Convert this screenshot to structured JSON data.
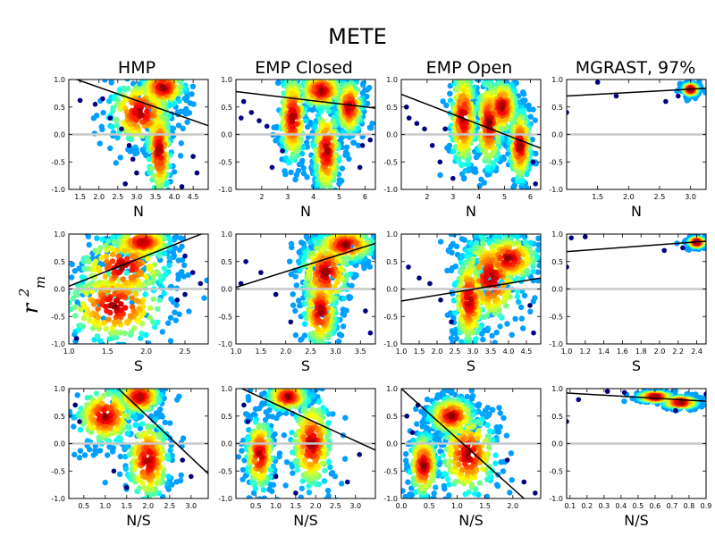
{
  "figure": {
    "title": "METE",
    "ylabel_main": "r",
    "ylabel_sup": "2",
    "ylabel_sub": "m",
    "column_titles": [
      "HMP",
      "EMP Closed",
      "EMP Open",
      "MGRAST, 97%"
    ],
    "row_xlabels": [
      "N",
      "S",
      "N/S"
    ]
  },
  "chart_data": [
    {
      "type": "scatter",
      "title": "HMP",
      "xlabel": "N",
      "ylim": [
        -1,
        1
      ],
      "xlim": [
        1.2,
        4.9
      ],
      "xticks": [
        "1.5",
        "2.0",
        "2.5",
        "3.0",
        "3.5",
        "4.0",
        "4.5"
      ],
      "yticks": [
        "1.0",
        "0.5",
        "0.0",
        "-0.5",
        "-1.0"
      ],
      "fit_line": {
        "x": [
          1.2,
          4.9
        ],
        "y": [
          1.05,
          0.16
        ]
      },
      "reference_line_y": 0,
      "density_clusters": [
        {
          "x": 3.7,
          "y": 0.85,
          "sx": 0.35,
          "sy": 0.2
        },
        {
          "x": 3.6,
          "y": -0.3,
          "sx": 0.18,
          "sy": 0.5
        },
        {
          "x": 3.1,
          "y": 0.4,
          "sx": 0.5,
          "sy": 0.35
        }
      ],
      "outliers": [
        [
          1.5,
          0.62
        ],
        [
          1.9,
          0.55
        ],
        [
          2.3,
          0.3
        ],
        [
          2.6,
          0.1
        ],
        [
          2.8,
          -0.2
        ],
        [
          2.9,
          -0.45
        ],
        [
          3.0,
          -0.7
        ],
        [
          2.7,
          -0.9
        ],
        [
          4.5,
          -0.4
        ],
        [
          4.6,
          -0.7
        ],
        [
          4.2,
          -0.95
        ],
        [
          2.1,
          0.65
        ]
      ]
    },
    {
      "type": "scatter",
      "title": "EMP Closed",
      "xlabel": "N",
      "ylim": [
        -1,
        1
      ],
      "xlim": [
        1.0,
        6.4
      ],
      "xticks": [
        "2",
        "3",
        "4",
        "5",
        "6"
      ],
      "yticks": [
        "1.0",
        "0.5",
        "0.0",
        "-0.5",
        "-1.0"
      ],
      "fit_line": {
        "x": [
          1.0,
          6.4
        ],
        "y": [
          0.78,
          0.48
        ]
      },
      "reference_line_y": 0,
      "density_clusters": [
        {
          "x": 4.3,
          "y": 0.8,
          "sx": 0.5,
          "sy": 0.2
        },
        {
          "x": 4.5,
          "y": -0.3,
          "sx": 0.3,
          "sy": 0.5
        },
        {
          "x": 3.2,
          "y": 0.3,
          "sx": 0.3,
          "sy": 0.5
        },
        {
          "x": 5.4,
          "y": 0.5,
          "sx": 0.3,
          "sy": 0.3
        }
      ],
      "outliers": [
        [
          1.3,
          0.6
        ],
        [
          1.6,
          0.4
        ],
        [
          1.9,
          0.25
        ],
        [
          2.2,
          0.15
        ],
        [
          2.4,
          -0.6
        ],
        [
          2.8,
          -0.3
        ],
        [
          5.9,
          -0.2
        ],
        [
          6.2,
          -0.1
        ],
        [
          5.8,
          -0.6
        ],
        [
          1.2,
          0.3
        ]
      ]
    },
    {
      "type": "scatter",
      "title": "EMP Open",
      "xlabel": "N",
      "ylim": [
        -1,
        1
      ],
      "xlim": [
        1.0,
        6.4
      ],
      "xticks": [
        "2",
        "3",
        "4",
        "5",
        "6"
      ],
      "yticks": [
        "1.0",
        "0.5",
        "0.0",
        "-0.5",
        "-1.0"
      ],
      "fit_line": {
        "x": [
          1.0,
          6.4
        ],
        "y": [
          0.73,
          -0.25
        ]
      },
      "reference_line_y": 0,
      "density_clusters": [
        {
          "x": 4.9,
          "y": 0.5,
          "sx": 0.35,
          "sy": 0.3
        },
        {
          "x": 4.4,
          "y": 0.2,
          "sx": 0.3,
          "sy": 0.5
        },
        {
          "x": 3.4,
          "y": 0.3,
          "sx": 0.3,
          "sy": 0.55
        },
        {
          "x": 5.6,
          "y": -0.2,
          "sx": 0.25,
          "sy": 0.4
        }
      ],
      "outliers": [
        [
          1.3,
          0.3
        ],
        [
          1.6,
          0.2
        ],
        [
          1.9,
          0.1
        ],
        [
          2.2,
          -0.2
        ],
        [
          2.5,
          -0.5
        ],
        [
          2.7,
          0.1
        ],
        [
          3.0,
          -0.8
        ],
        [
          6.1,
          -0.5
        ],
        [
          6.2,
          -0.9
        ],
        [
          1.2,
          0.5
        ]
      ]
    },
    {
      "type": "scatter",
      "title": "MGRAST, 97%",
      "xlabel": "N",
      "ylim": [
        -1,
        1
      ],
      "xlim": [
        1.0,
        3.25
      ],
      "xticks": [
        "1.5",
        "2.0",
        "2.5",
        "3.0"
      ],
      "yticks": [
        "1.0",
        "0.5",
        "0.0",
        "-0.5",
        "-1.0"
      ],
      "fit_line": {
        "x": [
          1.0,
          3.25
        ],
        "y": [
          0.7,
          0.84
        ]
      },
      "reference_line_y": 0,
      "density_clusters": [
        {
          "x": 3.0,
          "y": 0.82,
          "sx": 0.07,
          "sy": 0.06
        }
      ],
      "outliers": [
        [
          1.0,
          0.4
        ],
        [
          1.5,
          0.95
        ],
        [
          1.8,
          0.7
        ],
        [
          2.6,
          0.6
        ],
        [
          2.8,
          0.7
        ]
      ]
    },
    {
      "type": "scatter",
      "title": "",
      "xlabel": "S",
      "ylim": [
        -1,
        1
      ],
      "xlim": [
        1.0,
        2.8
      ],
      "xticks": [
        "1.0",
        "1.5",
        "2.0",
        "2.5"
      ],
      "yticks": [
        "1.0",
        "0.5",
        "0.0",
        "-0.5",
        "-1.0"
      ],
      "fit_line": {
        "x": [
          1.0,
          2.8
        ],
        "y": [
          0.05,
          1.05
        ]
      },
      "reference_line_y": 0,
      "density_clusters": [
        {
          "x": 1.95,
          "y": 0.85,
          "sx": 0.22,
          "sy": 0.15
        },
        {
          "x": 1.7,
          "y": 0.4,
          "sx": 0.35,
          "sy": 0.35
        },
        {
          "x": 1.6,
          "y": -0.3,
          "sx": 0.4,
          "sy": 0.4
        }
      ],
      "outliers": [
        [
          2.5,
          0.6
        ],
        [
          2.6,
          0.3
        ],
        [
          2.7,
          0.1
        ],
        [
          2.5,
          -0.1
        ],
        [
          2.4,
          -0.2
        ],
        [
          1.1,
          -0.9
        ]
      ]
    },
    {
      "type": "scatter",
      "title": "",
      "xlabel": "S",
      "ylim": [
        -1,
        1
      ],
      "xlim": [
        1.0,
        3.8
      ],
      "xticks": [
        "1.0",
        "1.5",
        "2.0",
        "2.5",
        "3.0",
        "3.5"
      ],
      "yticks": [
        "1.0",
        "0.5",
        "0.0",
        "-0.5",
        "-1.0"
      ],
      "fit_line": {
        "x": [
          1.0,
          3.8
        ],
        "y": [
          0.03,
          0.83
        ]
      },
      "reference_line_y": 0,
      "density_clusters": [
        {
          "x": 3.2,
          "y": 0.8,
          "sx": 0.35,
          "sy": 0.18
        },
        {
          "x": 2.8,
          "y": 0.3,
          "sx": 0.3,
          "sy": 0.4
        },
        {
          "x": 2.7,
          "y": -0.4,
          "sx": 0.2,
          "sy": 0.4
        }
      ],
      "outliers": [
        [
          1.2,
          0.5
        ],
        [
          1.5,
          0.3
        ],
        [
          1.8,
          -0.1
        ],
        [
          2.1,
          -0.6
        ],
        [
          3.6,
          -0.4
        ],
        [
          3.7,
          -0.8
        ],
        [
          1.1,
          0.1
        ]
      ]
    },
    {
      "type": "scatter",
      "title": "",
      "xlabel": "S",
      "ylim": [
        -1,
        1
      ],
      "xlim": [
        1.0,
        4.9
      ],
      "xticks": [
        "1.0",
        "1.5",
        "2.0",
        "2.5",
        "3.0",
        "3.5",
        "4.0",
        "4.5"
      ],
      "yticks": [
        "1.0",
        "0.5",
        "0.0",
        "-0.5",
        "-1.0"
      ],
      "fit_line": {
        "x": [
          1.0,
          4.9
        ],
        "y": [
          -0.22,
          0.2
        ]
      },
      "reference_line_y": 0,
      "density_clusters": [
        {
          "x": 4.0,
          "y": 0.55,
          "sx": 0.5,
          "sy": 0.25
        },
        {
          "x": 3.5,
          "y": 0.2,
          "sx": 0.5,
          "sy": 0.5
        },
        {
          "x": 2.9,
          "y": -0.2,
          "sx": 0.25,
          "sy": 0.5
        }
      ],
      "outliers": [
        [
          1.2,
          0.4
        ],
        [
          1.5,
          0.2
        ],
        [
          1.8,
          0.1
        ],
        [
          2.1,
          -0.2
        ],
        [
          2.4,
          -0.6
        ],
        [
          4.6,
          -0.3
        ],
        [
          4.7,
          -0.8
        ]
      ]
    },
    {
      "type": "scatter",
      "title": "",
      "xlabel": "S",
      "ylim": [
        -1,
        1
      ],
      "xlim": [
        1.0,
        2.5
      ],
      "xticks": [
        "1.0",
        "1.2",
        "1.4",
        "1.6",
        "1.8",
        "2.0",
        "2.2",
        "2.4"
      ],
      "yticks": [
        "1.0",
        "0.5",
        "0.0",
        "-0.5",
        "-1.0"
      ],
      "fit_line": {
        "x": [
          1.0,
          2.5
        ],
        "y": [
          0.68,
          0.87
        ]
      },
      "reference_line_y": 0,
      "density_clusters": [
        {
          "x": 2.4,
          "y": 0.85,
          "sx": 0.05,
          "sy": 0.05
        }
      ],
      "outliers": [
        [
          1.0,
          0.4
        ],
        [
          1.05,
          0.93
        ],
        [
          1.2,
          0.95
        ],
        [
          2.05,
          0.7
        ],
        [
          2.25,
          0.75
        ]
      ]
    },
    {
      "type": "scatter",
      "title": "",
      "xlabel": "N/S",
      "ylim": [
        -1,
        1
      ],
      "xlim": [
        0.15,
        3.4
      ],
      "xticks": [
        "0.5",
        "1.0",
        "1.5",
        "2.0",
        "2.5",
        "3.0"
      ],
      "yticks": [
        "1.0",
        "0.5",
        "0.0",
        "-0.5",
        "-1.0"
      ],
      "fit_line": {
        "x": [
          1.3,
          3.4
        ],
        "y": [
          1.0,
          -0.55
        ]
      },
      "reference_line_y": 0,
      "density_clusters": [
        {
          "x": 1.8,
          "y": 0.85,
          "sx": 0.3,
          "sy": 0.18
        },
        {
          "x": 2.0,
          "y": -0.3,
          "sx": 0.3,
          "sy": 0.45
        },
        {
          "x": 1.0,
          "y": 0.5,
          "sx": 0.4,
          "sy": 0.3
        }
      ],
      "outliers": [
        [
          0.3,
          0.7
        ],
        [
          0.4,
          0.4
        ],
        [
          1.2,
          -0.5
        ],
        [
          1.5,
          -0.8
        ],
        [
          2.8,
          -0.3
        ],
        [
          3.0,
          -0.6
        ]
      ]
    },
    {
      "type": "scatter",
      "title": "",
      "xlabel": "N/S",
      "ylim": [
        -1,
        1
      ],
      "xlim": [
        0.0,
        3.5
      ],
      "xticks": [
        "0.5",
        "1.0",
        "1.5",
        "2.0",
        "2.5",
        "3.0"
      ],
      "yticks": [
        "1.0",
        "0.5",
        "0.0",
        "-0.5",
        "-1.0"
      ],
      "fit_line": {
        "x": [
          0.0,
          3.5
        ],
        "y": [
          1.05,
          -0.12
        ]
      },
      "reference_line_y": 0,
      "density_clusters": [
        {
          "x": 1.3,
          "y": 0.85,
          "sx": 0.3,
          "sy": 0.15
        },
        {
          "x": 1.9,
          "y": 0.0,
          "sx": 0.3,
          "sy": 0.5
        },
        {
          "x": 0.6,
          "y": -0.2,
          "sx": 0.2,
          "sy": 0.4
        }
      ],
      "outliers": [
        [
          0.2,
          0.7
        ],
        [
          0.3,
          0.4
        ],
        [
          1.0,
          -0.6
        ],
        [
          1.5,
          -0.9
        ],
        [
          3.1,
          -0.2
        ],
        [
          2.8,
          -0.7
        ]
      ]
    },
    {
      "type": "scatter",
      "title": "",
      "xlabel": "N/S",
      "ylim": [
        -1,
        1
      ],
      "xlim": [
        0.0,
        2.5
      ],
      "xticks": [
        "0.0",
        "0.5",
        "1.0",
        "1.5",
        "2.0"
      ],
      "yticks": [
        "1.0",
        "0.5",
        "0.0",
        "-0.5",
        "-1.0"
      ],
      "fit_line": {
        "x": [
          0.0,
          2.2
        ],
        "y": [
          1.0,
          -1.0
        ]
      },
      "reference_line_y": 0,
      "density_clusters": [
        {
          "x": 0.9,
          "y": 0.5,
          "sx": 0.25,
          "sy": 0.2
        },
        {
          "x": 1.2,
          "y": -0.2,
          "sx": 0.3,
          "sy": 0.45
        },
        {
          "x": 0.4,
          "y": -0.4,
          "sx": 0.15,
          "sy": 0.35
        }
      ],
      "outliers": [
        [
          0.1,
          0.5
        ],
        [
          0.2,
          0.2
        ],
        [
          1.9,
          -0.3
        ],
        [
          2.2,
          -0.7
        ],
        [
          2.4,
          -0.9
        ],
        [
          0.3,
          0.7
        ]
      ]
    },
    {
      "type": "scatter",
      "title": "",
      "xlabel": "N/S",
      "ylim": [
        -1,
        1
      ],
      "xlim": [
        0.08,
        0.9
      ],
      "xticks": [
        "0.1",
        "0.2",
        "0.3",
        "0.4",
        "0.5",
        "0.6",
        "0.7",
        "0.8",
        "0.9"
      ],
      "yticks": [
        "1.0",
        "0.5",
        "0.0",
        "-0.5",
        "-1.0"
      ],
      "fit_line": {
        "x": [
          0.08,
          0.9
        ],
        "y": [
          0.92,
          0.77
        ]
      },
      "reference_line_y": 0,
      "density_clusters": [
        {
          "x": 0.6,
          "y": 0.85,
          "sx": 0.06,
          "sy": 0.05
        },
        {
          "x": 0.75,
          "y": 0.75,
          "sx": 0.06,
          "sy": 0.06
        }
      ],
      "outliers": [
        [
          0.08,
          0.4
        ],
        [
          0.15,
          0.8
        ],
        [
          0.32,
          0.95
        ],
        [
          0.42,
          0.93
        ],
        [
          0.9,
          0.9
        ],
        [
          0.72,
          0.6
        ]
      ]
    }
  ]
}
